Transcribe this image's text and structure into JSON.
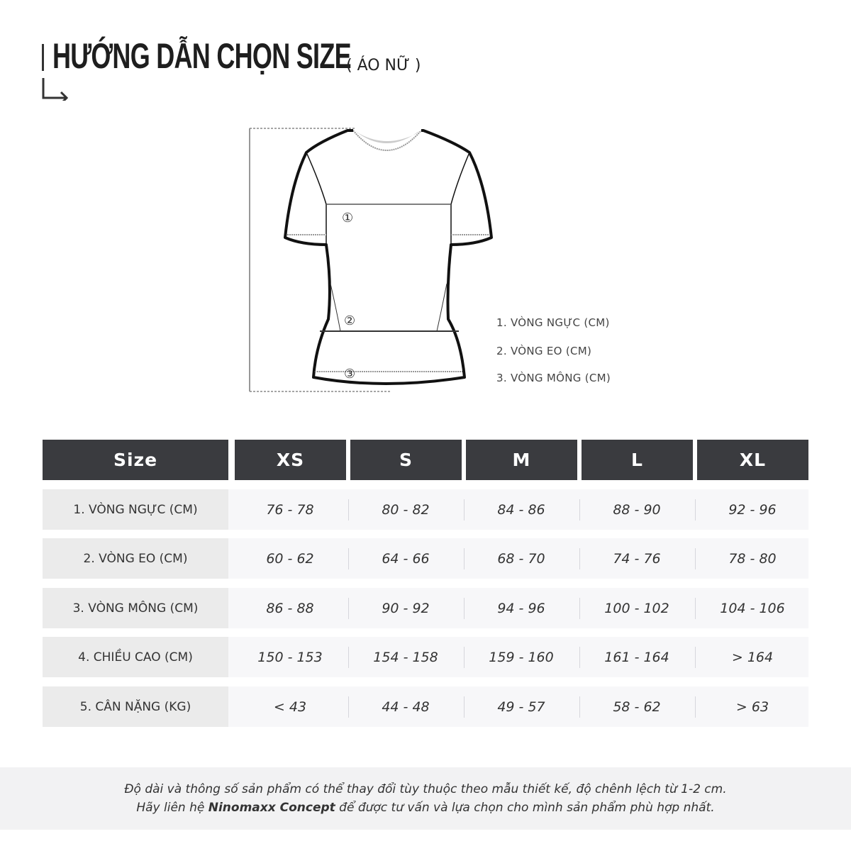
{
  "header": {
    "title": "HƯỚNG DẪN CHỌN SIZE",
    "subtitle": "( ÁO NỮ )"
  },
  "diagram": {
    "markers": [
      "①",
      "②",
      "③"
    ],
    "legend": [
      "1. VÒNG NGỰC (CM)",
      "2. VÒNG EO (CM)",
      "3. VÒNG MÔNG (CM)"
    ]
  },
  "table": {
    "columns": [
      "Size",
      "XS",
      "S",
      "M",
      "L",
      "XL"
    ],
    "rows": [
      {
        "label": "1. VÒNG NGỰC (CM)",
        "values": [
          "76 - 78",
          "80 - 82",
          "84 - 86",
          "88 - 90",
          "92 - 96"
        ]
      },
      {
        "label": "2. VÒNG EO (CM)",
        "values": [
          "60 - 62",
          "64 - 66",
          "68 - 70",
          "74 - 76",
          "78 - 80"
        ]
      },
      {
        "label": "3. VÒNG MÔNG (CM)",
        "values": [
          "86 - 88",
          "90 - 92",
          "94 - 96",
          "100 - 102",
          "104 - 106"
        ]
      },
      {
        "label": "4. CHIỀU CAO (CM)",
        "values": [
          "150 - 153",
          "154 - 158",
          "159 - 160",
          "161 - 164",
          "> 164"
        ]
      },
      {
        "label": "5. CÂN NẶNG (KG)",
        "values": [
          "< 43",
          "44 - 48",
          "49 - 57",
          "58 - 62",
          "> 63"
        ]
      }
    ]
  },
  "footer": {
    "line1": "Độ dài và thông số sản phẩm có thể thay đổi tùy thuộc theo mẫu thiết kế, độ chênh lệch từ 1-2 cm.",
    "line2_prefix": "Hãy liên hệ ",
    "line2_brand": "Ninomaxx Concept",
    "line2_suffix": " để được tư vấn và lựa chọn cho mình sản phẩm phù hợp nhất."
  },
  "colors": {
    "header_bg": "#3a3b3f",
    "label_bg": "#ebebeb",
    "value_bg": "#f7f7f9",
    "footer_bg": "#f2f2f3"
  }
}
